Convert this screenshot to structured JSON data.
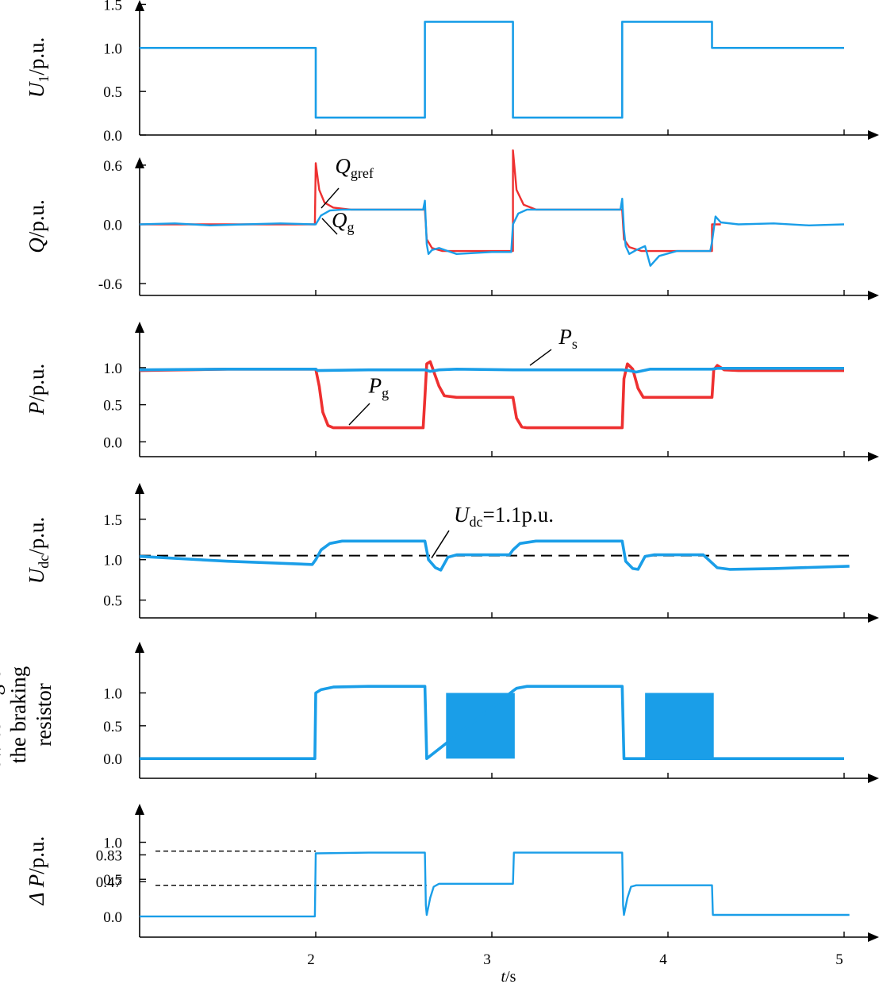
{
  "figure": {
    "x_axis": {
      "label_italic": "t",
      "label_rest": "/s",
      "ticks": [
        2,
        3,
        4,
        5
      ],
      "range": [
        1.0,
        5.18
      ]
    }
  },
  "colors": {
    "blue": "#1a9ee8",
    "red": "#ee3030",
    "axis": "#000000"
  },
  "chart_data": [
    {
      "id": "u1",
      "type": "line",
      "ylabel": {
        "italic": "U",
        "sub": "1",
        "rest": "/p.u."
      },
      "ylim": [
        0.0,
        1.55
      ],
      "yticks": [
        "0.0",
        "0.5",
        "1.0",
        "1.5"
      ],
      "series": [
        {
          "color": "blue",
          "x": [
            1.0,
            2.0,
            2.0,
            2.62,
            2.62,
            3.12,
            3.12,
            3.74,
            3.74,
            4.25,
            4.25,
            5.0
          ],
          "y": [
            1.0,
            1.0,
            0.2,
            0.2,
            1.3,
            1.3,
            0.2,
            0.2,
            1.3,
            1.3,
            1.0,
            1.0
          ]
        }
      ]
    },
    {
      "id": "q",
      "type": "line",
      "ylabel": {
        "italic": "Q",
        "sub": "",
        "rest": "/p.u."
      },
      "ylim": [
        -0.72,
        0.68
      ],
      "yticks": [
        "-0.6",
        "0.0",
        "0.6"
      ],
      "annotations": [
        {
          "italic": "Q",
          "sub": "gref",
          "x": 2.11,
          "y": 0.52
        },
        {
          "italic": "Q",
          "sub": "g",
          "x": 2.09,
          "y": -0.03
        }
      ],
      "series": [
        {
          "name": "Q_gref",
          "color": "red",
          "x": [
            1.0,
            1.995,
            2.0,
            2.02,
            2.05,
            2.1,
            2.2,
            2.62,
            2.63,
            2.66,
            2.72,
            3.12,
            3.12,
            3.14,
            3.18,
            3.25,
            3.74,
            3.75,
            3.78,
            3.85,
            4.25,
            4.25,
            4.3
          ],
          "y": [
            0.0,
            0.0,
            0.62,
            0.35,
            0.22,
            0.17,
            0.15,
            0.15,
            -0.15,
            -0.24,
            -0.27,
            -0.27,
            0.75,
            0.35,
            0.2,
            0.15,
            0.15,
            -0.15,
            -0.23,
            -0.27,
            -0.27,
            0.0,
            0.0
          ]
        },
        {
          "name": "Q_g",
          "color": "blue",
          "x": [
            1.0,
            1.2,
            1.4,
            1.6,
            1.8,
            1.99,
            2.0,
            2.03,
            2.08,
            2.15,
            2.3,
            2.61,
            2.62,
            2.63,
            2.64,
            2.66,
            2.7,
            2.75,
            2.8,
            2.9,
            3.0,
            3.11,
            3.12,
            3.15,
            3.2,
            3.3,
            3.5,
            3.73,
            3.74,
            3.75,
            3.76,
            3.78,
            3.82,
            3.87,
            3.9,
            3.95,
            4.05,
            4.24,
            4.25,
            4.27,
            4.3,
            4.4,
            4.6,
            4.8,
            5.0
          ],
          "y": [
            0.0,
            0.01,
            -0.01,
            0.0,
            0.01,
            0.0,
            0.0,
            0.09,
            0.14,
            0.15,
            0.15,
            0.15,
            0.24,
            -0.2,
            -0.3,
            -0.26,
            -0.24,
            -0.27,
            -0.3,
            -0.29,
            -0.28,
            -0.28,
            0.0,
            0.11,
            0.15,
            0.15,
            0.15,
            0.15,
            0.26,
            -0.05,
            -0.22,
            -0.3,
            -0.26,
            -0.22,
            -0.42,
            -0.32,
            -0.27,
            -0.27,
            -0.18,
            0.08,
            0.02,
            0.0,
            0.01,
            -0.01,
            0.0
          ]
        }
      ]
    },
    {
      "id": "p",
      "type": "line",
      "ylabel": {
        "italic": "P",
        "sub": "",
        "rest": "/p.u."
      },
      "ylim": [
        -0.2,
        1.62
      ],
      "yticks": [
        "0.0",
        "0.5",
        "1.0"
      ],
      "annotations": [
        {
          "italic": "P",
          "sub": "s",
          "x": 3.38,
          "y": 1.32
        },
        {
          "italic": "P",
          "sub": "g",
          "x": 2.3,
          "y": 0.66
        }
      ],
      "series": [
        {
          "name": "P_g",
          "color": "red",
          "x": [
            1.0,
            1.5,
            2.0,
            2.02,
            2.04,
            2.07,
            2.1,
            2.2,
            2.61,
            2.62,
            2.63,
            2.65,
            2.67,
            2.7,
            2.73,
            2.8,
            3.0,
            3.12,
            3.14,
            3.17,
            3.2,
            3.4,
            3.74,
            3.75,
            3.77,
            3.8,
            3.83,
            3.86,
            3.9,
            4.1,
            4.25,
            4.26,
            4.28,
            4.32,
            4.4,
            5.0
          ],
          "y": [
            0.96,
            0.98,
            0.98,
            0.75,
            0.4,
            0.22,
            0.19,
            0.19,
            0.19,
            0.6,
            1.05,
            1.08,
            0.95,
            0.75,
            0.62,
            0.6,
            0.6,
            0.6,
            0.32,
            0.2,
            0.19,
            0.19,
            0.19,
            0.85,
            1.05,
            0.98,
            0.72,
            0.6,
            0.6,
            0.6,
            0.6,
            0.97,
            1.03,
            0.97,
            0.96,
            0.96
          ]
        },
        {
          "name": "P_s",
          "color": "blue",
          "x": [
            1.0,
            1.5,
            2.0,
            2.01,
            2.3,
            2.62,
            2.65,
            2.7,
            2.8,
            3.12,
            3.5,
            3.74,
            3.78,
            3.82,
            3.9,
            4.25,
            4.28,
            4.5,
            5.0
          ],
          "y": [
            0.97,
            0.98,
            0.98,
            0.96,
            0.97,
            0.97,
            0.95,
            0.97,
            0.98,
            0.97,
            0.97,
            0.97,
            0.96,
            0.94,
            0.98,
            0.98,
            0.99,
            0.99,
            0.99
          ]
        }
      ]
    },
    {
      "id": "udc",
      "type": "line",
      "ylabel": {
        "italic": "U",
        "sub": "dc",
        "rest": "/p.u."
      },
      "ylim": [
        0.28,
        1.95
      ],
      "yticks": [
        "0.5",
        "1.0",
        "1.5"
      ],
      "reference": {
        "y": 1.05,
        "label_italic": "U",
        "label_sub": "dc",
        "label_rest": "=1.1p.u."
      },
      "series": [
        {
          "color": "blue",
          "x": [
            1.0,
            1.5,
            1.98,
            2.0,
            2.03,
            2.08,
            2.15,
            2.62,
            2.64,
            2.68,
            2.71,
            2.75,
            2.8,
            3.1,
            3.12,
            3.16,
            3.25,
            3.74,
            3.76,
            3.8,
            3.83,
            3.87,
            3.92,
            4.2,
            4.25,
            4.28,
            4.35,
            4.6,
            5.03
          ],
          "y": [
            1.04,
            0.98,
            0.94,
            1.0,
            1.12,
            1.2,
            1.23,
            1.23,
            1.0,
            0.9,
            0.87,
            1.03,
            1.06,
            1.06,
            1.12,
            1.2,
            1.23,
            1.23,
            0.98,
            0.89,
            0.88,
            1.04,
            1.06,
            1.06,
            0.96,
            0.9,
            0.88,
            0.89,
            0.92
          ]
        }
      ]
    },
    {
      "id": "brake",
      "type": "line",
      "ylabel": {
        "lines": [
          "switching of",
          "the braking",
          "resistor"
        ]
      },
      "ylim": [
        -0.3,
        1.78
      ],
      "yticks": [
        "0.0",
        "0.5",
        "1.0"
      ],
      "blocks": [
        {
          "x0": 2.74,
          "x1": 3.13,
          "y0": 0.0,
          "y1": 1.0
        },
        {
          "x0": 3.87,
          "x1": 4.26,
          "y0": 0.0,
          "y1": 1.0
        }
      ],
      "series": [
        {
          "color": "blue",
          "x": [
            1.0,
            1.995,
            2.0,
            2.03,
            2.1,
            2.3,
            2.6,
            2.62,
            2.63,
            3.12,
            3.14,
            3.2,
            3.4,
            3.73,
            3.74,
            3.75,
            5.0
          ],
          "y": [
            0.0,
            0.0,
            1.0,
            1.05,
            1.09,
            1.1,
            1.1,
            1.1,
            0.0,
            1.03,
            1.07,
            1.1,
            1.1,
            1.1,
            1.1,
            0.0,
            0.0
          ]
        }
      ]
    },
    {
      "id": "dp",
      "type": "line",
      "ylabel": {
        "prefix": "Δ",
        "italic": "P",
        "sub": "",
        "rest": "/p.u."
      },
      "ylim": [
        -0.28,
        1.52
      ],
      "yticks": [
        "0.0",
        "0.47",
        "0.5",
        "0.83",
        "1.0"
      ],
      "reference_lines": [
        {
          "y": 0.88,
          "x1": 2.0
        },
        {
          "y": 0.42,
          "x1": 2.63
        }
      ],
      "series": [
        {
          "color": "blue",
          "x": [
            1.0,
            1.5,
            1.995,
            2.0,
            2.3,
            2.62,
            2.625,
            2.63,
            2.65,
            2.67,
            2.7,
            3.12,
            3.125,
            3.5,
            3.74,
            3.745,
            3.75,
            3.77,
            3.79,
            3.82,
            4.25,
            4.255,
            4.6,
            5.03
          ],
          "y": [
            0.0,
            0.0,
            0.0,
            0.85,
            0.86,
            0.86,
            0.15,
            0.02,
            0.25,
            0.4,
            0.44,
            0.44,
            0.86,
            0.86,
            0.86,
            0.15,
            0.02,
            0.25,
            0.4,
            0.42,
            0.42,
            0.02,
            0.02,
            0.02
          ]
        }
      ]
    }
  ]
}
